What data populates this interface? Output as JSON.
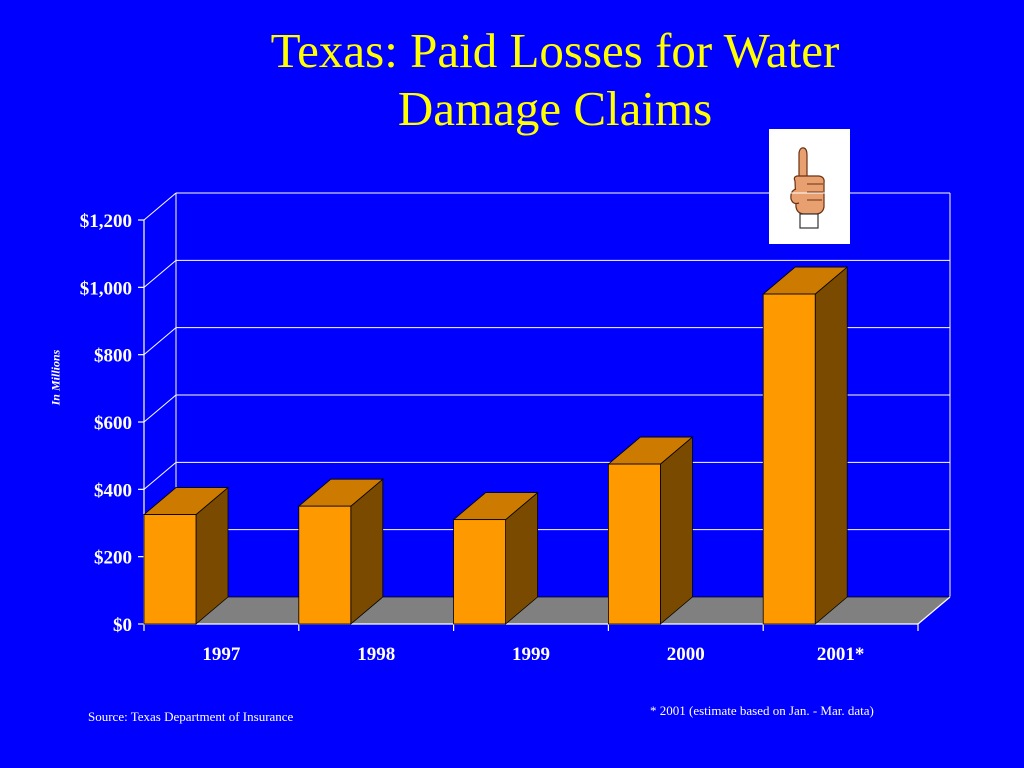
{
  "slide": {
    "title_line1": "Texas: Paid Losses for Water",
    "title_line2": "Damage Claims",
    "source": "Source: Texas Department of Insurance",
    "footnote": "* 2001 (estimate based on Jan. - Mar. data)",
    "pointer_icon": "pointing-hand-icon"
  },
  "colors": {
    "background": "#0000ff",
    "title": "#ffff00",
    "bar_front": "#ff9900",
    "bar_side": "#7a4a00",
    "bar_top": "#cc7a00",
    "floor": "#808080",
    "text": "#ffffff"
  },
  "chart_data": {
    "type": "bar",
    "title": "Texas: Paid Losses for Water Damage Claims",
    "xlabel": "",
    "ylabel": "In Millions",
    "categories": [
      "1997",
      "1998",
      "1999",
      "2000",
      "2001*"
    ],
    "values": [
      325,
      350,
      310,
      475,
      980
    ],
    "ylim": [
      0,
      1200
    ],
    "yticks": [
      0,
      200,
      400,
      600,
      800,
      1000,
      1200
    ],
    "ytick_labels": [
      "$0",
      "$200",
      "$400",
      "$600",
      "$800",
      "$1,000",
      "$1,200"
    ],
    "grid": true,
    "style": "3d"
  }
}
